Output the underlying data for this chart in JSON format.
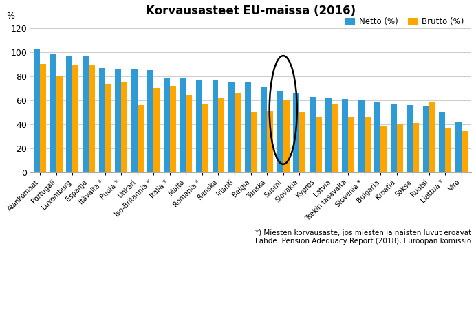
{
  "title": "Korvausasteet EU-maissa (2016)",
  "ylabel": "%",
  "ylim": [
    0,
    125
  ],
  "yticks": [
    0,
    20,
    40,
    60,
    80,
    100,
    120
  ],
  "legend_labels": [
    "Netto (%)",
    "Brutto (%)"
  ],
  "bar_color_netto": "#2E9BD6",
  "bar_color_brutto": "#FFA500",
  "footnote_line1": "*) Miesten korvausaste, jos miesten ja naisten luvut eroavat",
  "footnote_line2": "Lähde: Pension Adequacy Report (2018), Euroopan komissio",
  "circle_country": "Suomi",
  "countries": [
    "Alankomaat",
    "Portugali",
    "Luxemburg",
    "Espanja",
    "Itävalta *",
    "Puola *",
    "Unkari",
    "Iso-Britannia *",
    "Italia *",
    "Malta",
    "Romania *",
    "Ranska",
    "Irlanti",
    "Belgia",
    "Tanska",
    "Suomi",
    "Slovakia",
    "Kypros",
    "Latvia",
    "Tsekin tasavalta",
    "Slovenia *",
    "Bulgaria",
    "Kroatia",
    "Saksa",
    "Ruotsi",
    "Liettua *",
    "Viro"
  ],
  "netto": [
    102,
    98,
    97,
    97,
    87,
    86,
    86,
    85,
    79,
    79,
    77,
    77,
    75,
    75,
    71,
    68,
    66,
    63,
    62,
    61,
    60,
    59,
    57,
    56,
    55,
    50,
    42
  ],
  "brutto": [
    90,
    80,
    89,
    89,
    73,
    75,
    56,
    70,
    72,
    64,
    57,
    62,
    66,
    50,
    51,
    60,
    50,
    46,
    57,
    46,
    46,
    39,
    40,
    41,
    58,
    37,
    34
  ],
  "figsize": [
    6.92,
    4.76
  ],
  "dpi": 100
}
